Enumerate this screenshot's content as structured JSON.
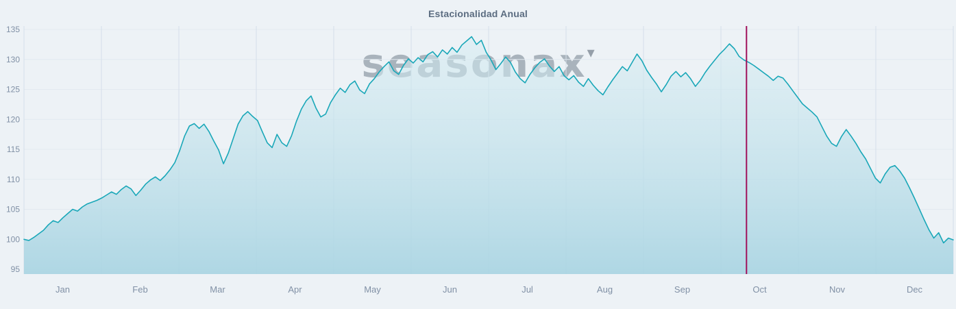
{
  "page": {
    "background": "#edf2f6"
  },
  "header": {
    "title": "Estacionalidad Anual"
  },
  "watermark": {
    "text": "seasonax",
    "triangle": "▾"
  },
  "chart_data": {
    "type": "area",
    "title": "Estacionalidad Anual",
    "legend": "none",
    "grid": "on",
    "x_axis": {
      "label": "",
      "tick_labels": [
        "Jan",
        "Feb",
        "Mar",
        "Apr",
        "May",
        "Jun",
        "Jul",
        "Aug",
        "Sep",
        "Oct",
        "Nov",
        "Dec"
      ],
      "range_months": [
        0,
        12
      ]
    },
    "y_axis": {
      "label": "",
      "ticks": [
        95,
        100,
        105,
        110,
        115,
        120,
        125,
        130,
        135
      ],
      "range": [
        95,
        135
      ]
    },
    "series": [
      {
        "name": "seasonal-pattern-indexed-to-100",
        "points_per_month": 16,
        "values": [
          100.0,
          99.8,
          100.3,
          100.9,
          101.5,
          102.4,
          103.1,
          102.8,
          103.6,
          104.3,
          105.0,
          104.7,
          105.4,
          105.9,
          106.2,
          106.5,
          106.9,
          107.4,
          107.9,
          107.5,
          108.3,
          108.9,
          108.4,
          107.3,
          108.2,
          109.2,
          109.9,
          110.4,
          109.8,
          110.6,
          111.6,
          112.8,
          114.8,
          117.2,
          118.9,
          119.3,
          118.5,
          119.2,
          118.0,
          116.4,
          114.9,
          112.6,
          114.4,
          116.8,
          119.2,
          120.6,
          121.3,
          120.5,
          119.8,
          117.9,
          116.1,
          115.3,
          117.5,
          116.1,
          115.5,
          117.3,
          119.7,
          121.7,
          123.1,
          123.9,
          121.9,
          120.4,
          120.9,
          122.8,
          124.1,
          125.2,
          124.5,
          125.8,
          126.4,
          124.9,
          124.3,
          125.9,
          126.8,
          127.9,
          128.8,
          129.6,
          128.1,
          127.5,
          129.0,
          130.1,
          129.4,
          130.3,
          129.6,
          130.8,
          131.3,
          130.4,
          131.6,
          130.9,
          132.0,
          131.2,
          132.4,
          133.1,
          133.8,
          132.5,
          133.2,
          131.2,
          129.9,
          128.3,
          129.3,
          130.4,
          129.5,
          127.9,
          126.8,
          126.1,
          127.5,
          128.6,
          129.5,
          130.1,
          128.9,
          128.0,
          128.8,
          127.3,
          126.6,
          127.3,
          126.2,
          125.5,
          126.8,
          125.7,
          124.8,
          124.1,
          125.4,
          126.6,
          127.7,
          128.8,
          128.1,
          129.5,
          130.9,
          129.8,
          128.2,
          127.0,
          125.9,
          124.6,
          125.8,
          127.2,
          128.0,
          127.1,
          127.8,
          126.8,
          125.5,
          126.5,
          127.8,
          128.9,
          129.9,
          130.9,
          131.7,
          132.6,
          131.8,
          130.5,
          129.9,
          129.5,
          129.0,
          128.4,
          127.8,
          127.2,
          126.5,
          127.2,
          126.9,
          125.9,
          124.8,
          123.7,
          122.6,
          121.9,
          121.2,
          120.4,
          118.8,
          117.2,
          116.0,
          115.5,
          117.1,
          118.3,
          117.2,
          116.0,
          114.6,
          113.4,
          111.8,
          110.2,
          109.4,
          110.9,
          112.0,
          112.3,
          111.4,
          110.2,
          108.6,
          106.9,
          105.1,
          103.3,
          101.6,
          100.2,
          101.1,
          99.4,
          100.2,
          99.9
        ]
      }
    ],
    "marker_line": {
      "x_month": 9.33,
      "color": "#a0105a"
    },
    "colors": {
      "line": "#19a7b8",
      "fill_top": "rgba(213,236,242,0.50)",
      "fill_bottom": "rgba(168,212,226,0.90)",
      "grid_v": "#d5dfe9",
      "grid_h": "#e2e9f0",
      "axis_text": "#8090a5",
      "title_text": "#5b6c80",
      "background": "#edf2f6"
    }
  }
}
